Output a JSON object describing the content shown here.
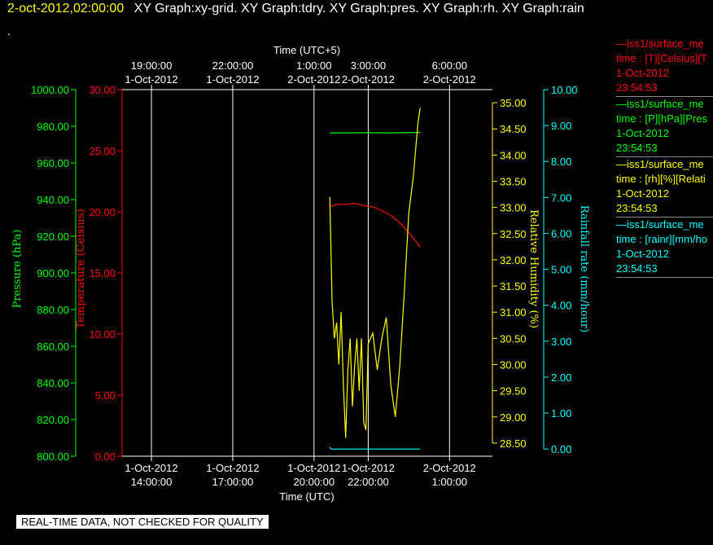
{
  "header": {
    "datetime": "2-oct-2012,02:00:00",
    "graphs": "XY Graph:xy-grid.  XY Graph:tdry.  XY Graph:pres.  XY Graph:rh.  XY Graph:rain",
    "dot": "."
  },
  "footer": "REAL-TIME DATA, NOT CHECKED FOR QUALITY",
  "legend": [
    {
      "line1": "—iss1/surface_me",
      "line2": "time : [T][Celsius][T",
      "line3": "1-Oct-2012",
      "line4": "23:54:53",
      "color": "#ff0000"
    },
    {
      "line1": "—iss1/surface_me",
      "line2": "time : [P][hPa][Pres",
      "line3": "1-Oct-2012",
      "line4": "23:54:53",
      "color": "#00ff00"
    },
    {
      "line1": "—iss1/surface_me",
      "line2": "time : [rh][%][Relati",
      "line3": "1-Oct-2012",
      "line4": "23:54:53",
      "color": "#ffff00"
    },
    {
      "line1": "—iss1/surface_me",
      "line2": "time : [rainr][mm/ho",
      "line3": "1-Oct-2012",
      "line4": "23:54:53",
      "color": "#00ffff"
    }
  ],
  "chart_data": {
    "type": "line",
    "grid": true,
    "xlabel_bottom": "Time (UTC)",
    "xlabel_top": "Time (UTC+5)",
    "x_range": [
      "2012-10-01T12:55:00",
      "2012-10-02T02:35:00"
    ],
    "ticks_bottom": [
      {
        "t": "2012-10-01T14:00:00",
        "l1": "1-Oct-2012",
        "l2": "14:00:00"
      },
      {
        "t": "2012-10-01T17:00:00",
        "l1": "1-Oct-2012",
        "l2": "17:00:00"
      },
      {
        "t": "2012-10-01T20:00:00",
        "l1": "1-Oct-2012",
        "l2": "20:00:00"
      },
      {
        "t": "2012-10-01T22:00:00",
        "l1": "1-Oct-2012",
        "l2": "22:00:00"
      },
      {
        "t": "2012-10-02T01:00:00",
        "l1": "2-Oct-2012",
        "l2": "1:00:00"
      }
    ],
    "ticks_top": [
      {
        "t": "2012-10-01T14:00:00",
        "l1": "19:00:00",
        "l2": "1-Oct-2012"
      },
      {
        "t": "2012-10-01T17:00:00",
        "l1": "22:00:00",
        "l2": "1-Oct-2012"
      },
      {
        "t": "2012-10-01T20:00:00",
        "l1": "1:00:00",
        "l2": "2-Oct-2012"
      },
      {
        "t": "2012-10-01T22:00:00",
        "l1": "3:00:00",
        "l2": "2-Oct-2012"
      },
      {
        "t": "2012-10-02T01:00:00",
        "l1": "6:00:00",
        "l2": "2-Oct-2012"
      }
    ],
    "axes": [
      {
        "id": "pres",
        "label": "Pressure (hPa)",
        "color": "#00ff00",
        "min": 800,
        "max": 1000,
        "step": 20,
        "decimals": 2,
        "side": "left"
      },
      {
        "id": "temp",
        "label": "Temperature (Celsius)",
        "color": "#ff0000",
        "min": 0,
        "max": 30,
        "step": 5,
        "decimals": 2,
        "side": "left"
      },
      {
        "id": "rh",
        "label": "Relative Humidity (%)",
        "color": "#ffff00",
        "min": 28.25,
        "max": 35.25,
        "step": 0.5,
        "decimals": 2,
        "side": "right",
        "tick_min": 28.5,
        "tick_max": 35
      },
      {
        "id": "rain",
        "label": "Rainfall rate (mm/hour)",
        "color": "#00ffff",
        "min": -0.2,
        "max": 10,
        "step": 1,
        "decimals": 2,
        "side": "right",
        "tick_min": 0,
        "tick_max": 10
      }
    ],
    "series": [
      {
        "axis": "pres",
        "color": "#00ff00",
        "points": [
          [
            "2012-10-01T20:35:00",
            976.4
          ],
          [
            "2012-10-01T21:20:00",
            976.4
          ],
          [
            "2012-10-01T22:00:00",
            976.5
          ],
          [
            "2012-10-01T22:40:00",
            976.4
          ],
          [
            "2012-10-01T23:20:00",
            976.5
          ],
          [
            "2012-10-01T23:55:00",
            976.6
          ]
        ]
      },
      {
        "axis": "temp",
        "color": "#ff0000",
        "points": [
          [
            "2012-10-01T20:35:00",
            20.4
          ],
          [
            "2012-10-01T20:50:00",
            20.6
          ],
          [
            "2012-10-01T21:10:00",
            20.6
          ],
          [
            "2012-10-01T21:30:00",
            20.7
          ],
          [
            "2012-10-01T21:50:00",
            20.5
          ],
          [
            "2012-10-01T22:10:00",
            20.4
          ],
          [
            "2012-10-01T22:30:00",
            20.1
          ],
          [
            "2012-10-01T22:50:00",
            19.7
          ],
          [
            "2012-10-01T23:10:00",
            19.1
          ],
          [
            "2012-10-01T23:30:00",
            18.3
          ],
          [
            "2012-10-01T23:45:00",
            17.6
          ],
          [
            "2012-10-01T23:55:00",
            17.1
          ]
        ]
      },
      {
        "axis": "rh",
        "color": "#ffff00",
        "points": [
          [
            "2012-10-01T20:35:00",
            33.2
          ],
          [
            "2012-10-01T20:40:00",
            31.2
          ],
          [
            "2012-10-01T20:45:00",
            30.5
          ],
          [
            "2012-10-01T20:50:00",
            30.8
          ],
          [
            "2012-10-01T20:55:00",
            30.0
          ],
          [
            "2012-10-01T21:00:00",
            31.0
          ],
          [
            "2012-10-01T21:05:00",
            29.6
          ],
          [
            "2012-10-01T21:10:00",
            28.6
          ],
          [
            "2012-10-01T21:15:00",
            29.9
          ],
          [
            "2012-10-01T21:20:00",
            30.5
          ],
          [
            "2012-10-01T21:25:00",
            29.2
          ],
          [
            "2012-10-01T21:30:00",
            30.0
          ],
          [
            "2012-10-01T21:35:00",
            30.5
          ],
          [
            "2012-10-01T21:40:00",
            29.5
          ],
          [
            "2012-10-01T21:45:00",
            30.5
          ],
          [
            "2012-10-01T21:50:00",
            28.9
          ],
          [
            "2012-10-01T21:55:00",
            28.75
          ],
          [
            "2012-10-01T22:00:00",
            30.4
          ],
          [
            "2012-10-01T22:10:00",
            30.6
          ],
          [
            "2012-10-01T22:20:00",
            29.9
          ],
          [
            "2012-10-01T22:30:00",
            30.5
          ],
          [
            "2012-10-01T22:40:00",
            30.9
          ],
          [
            "2012-10-01T22:50:00",
            29.6
          ],
          [
            "2012-10-01T23:00:00",
            29.0
          ],
          [
            "2012-10-01T23:10:00",
            30.0
          ],
          [
            "2012-10-01T23:20:00",
            31.4
          ],
          [
            "2012-10-01T23:30:00",
            32.9
          ],
          [
            "2012-10-01T23:40:00",
            33.6
          ],
          [
            "2012-10-01T23:50:00",
            34.6
          ],
          [
            "2012-10-01T23:55:00",
            34.9
          ]
        ]
      },
      {
        "axis": "rain",
        "color": "#00ffff",
        "points": [
          [
            "2012-10-01T20:35:00",
            0.05
          ],
          [
            "2012-10-01T20:38:00",
            0.0
          ],
          [
            "2012-10-01T23:55:00",
            0.0
          ]
        ]
      }
    ]
  }
}
